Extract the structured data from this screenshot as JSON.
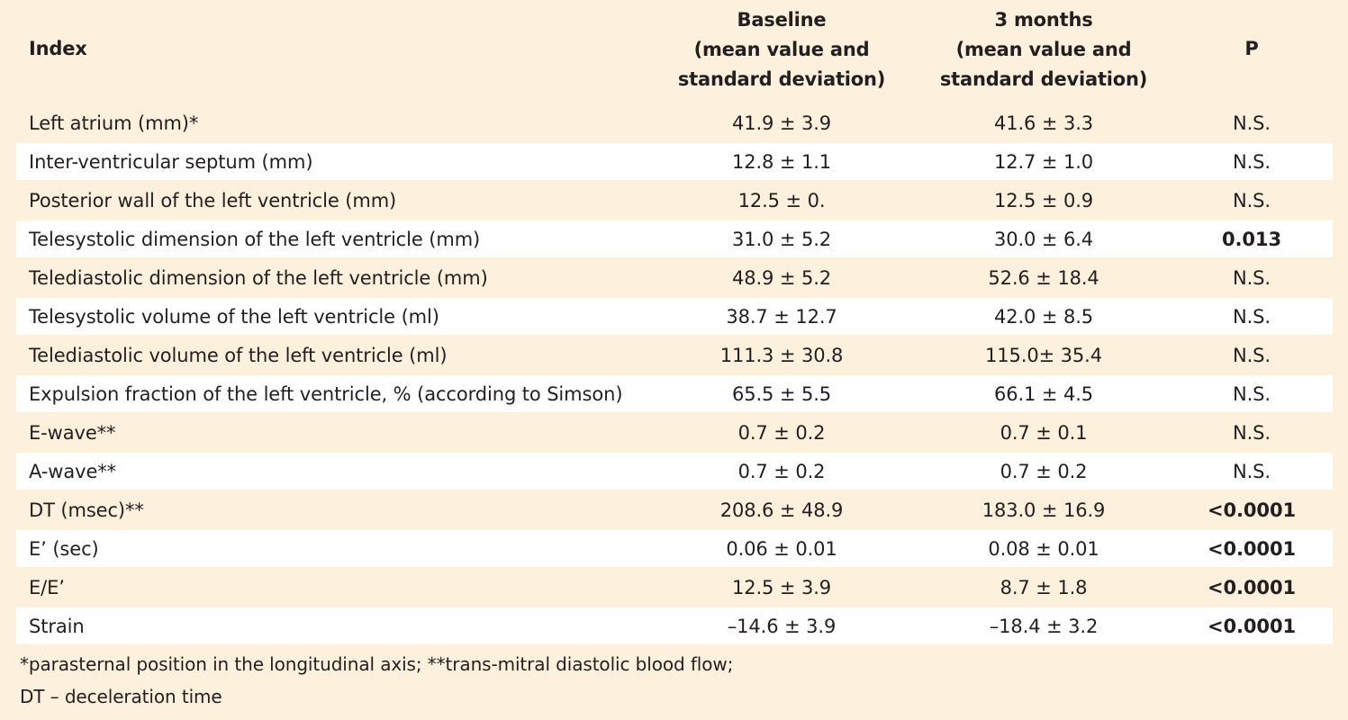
{
  "table": {
    "headers": {
      "index": "Index",
      "baseline": [
        "Baseline",
        "(mean value and",
        "standard deviation)"
      ],
      "months3": [
        "3 months",
        "(mean value and",
        "standard deviation)"
      ],
      "p": "P"
    },
    "rows": [
      {
        "index": "Left atrium (mm)*",
        "baseline": "41.9 ± 3.9",
        "months3": "41.6 ± 3.3",
        "p": "N.S.",
        "p_bold": false
      },
      {
        "index": "Inter-ventricular septum (mm)",
        "baseline": "12.8 ± 1.1",
        "months3": "12.7 ± 1.0",
        "p": "N.S.",
        "p_bold": false
      },
      {
        "index": "Posterior wall of the left ventricle (mm)",
        "baseline": "12.5 ± 0.",
        "months3": "12.5 ± 0.9",
        "p": "N.S.",
        "p_bold": false
      },
      {
        "index": "Telesystolic dimension of the left ventricle (mm)",
        "baseline": "31.0 ± 5.2",
        "months3": "30.0 ± 6.4",
        "p": "0.013",
        "p_bold": true
      },
      {
        "index": "Telediastolic dimension of the left ventricle (mm)",
        "baseline": "48.9 ± 5.2",
        "months3": "52.6 ± 18.4",
        "p": "N.S.",
        "p_bold": false
      },
      {
        "index": "Telesystolic volume of the left ventricle (ml)",
        "baseline": "38.7 ± 12.7",
        "months3": "42.0 ± 8.5",
        "p": "N.S.",
        "p_bold": false
      },
      {
        "index": "Telediastolic volume of the left ventricle (ml)",
        "baseline": "111.3 ± 30.8",
        "months3": "115.0± 35.4",
        "p": "N.S.",
        "p_bold": false
      },
      {
        "index": "Expulsion fraction of the left ventricle, % (according to Simson)",
        "baseline": "65.5 ± 5.5",
        "months3": "66.1 ± 4.5",
        "p": "N.S.",
        "p_bold": false
      },
      {
        "index": "E-wave**",
        "baseline": "0.7 ± 0.2",
        "months3": "0.7 ± 0.1",
        "p": "N.S.",
        "p_bold": false
      },
      {
        "index": "A-wave**",
        "baseline": "0.7 ± 0.2",
        "months3": "0.7 ± 0.2",
        "p": "N.S.",
        "p_bold": false
      },
      {
        "index": "DT (msec)**",
        "baseline": "208.6 ± 48.9",
        "months3": "183.0 ± 16.9",
        "p": "<0.0001",
        "p_bold": true
      },
      {
        "index": "E’ (sec)",
        "baseline": "0.06 ± 0.01",
        "months3": "0.08 ± 0.01",
        "p": "<0.0001",
        "p_bold": true
      },
      {
        "index": "E/E’",
        "baseline": "12.5 ± 3.9",
        "months3": "8.7 ± 1.8",
        "p": "<0.0001",
        "p_bold": true
      },
      {
        "index": "Strain",
        "baseline": "–14.6 ± 3.9",
        "months3": "–18.4 ± 3.2",
        "p": "<0.0001",
        "p_bold": true
      }
    ]
  },
  "footnotes": [
    "*parasternal position in the longitudinal axis; **trans-mitral diastolic blood flow;",
    "DT – deceleration time"
  ],
  "colors": {
    "background": "#fdf0dc",
    "alt_row": "#ffffff",
    "text": "#231f20"
  }
}
